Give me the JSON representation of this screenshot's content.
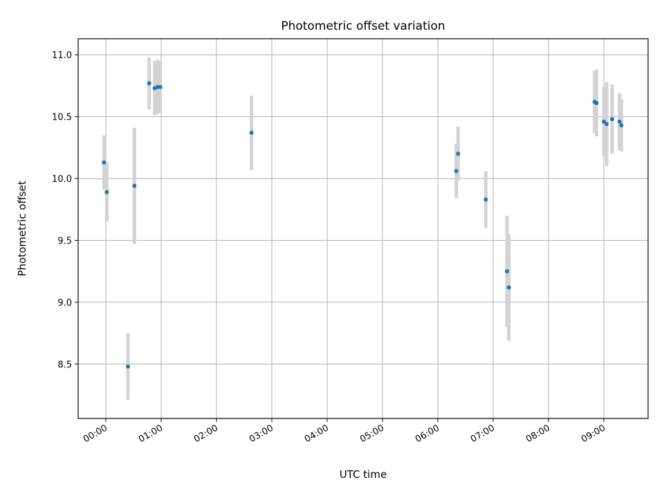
{
  "chart_data": {
    "type": "scatter",
    "title": "Photometric offset variation",
    "xlabel": "UTC time",
    "ylabel": "Photometric offset",
    "x_is_time": true,
    "xlim": [
      "23:30",
      "09:48"
    ],
    "ylim": [
      8.06,
      11.13
    ],
    "yticks": [
      8.5,
      9.0,
      9.5,
      10.0,
      10.5,
      11.0
    ],
    "ytick_labels": [
      "8.5",
      "9.0",
      "9.5",
      "10.0",
      "10.5",
      "11.0"
    ],
    "xticks": [
      "00:00",
      "01:00",
      "02:00",
      "03:00",
      "04:00",
      "05:00",
      "06:00",
      "07:00",
      "08:00",
      "09:00"
    ],
    "grid": true,
    "colors": {
      "point": "#1f77b4",
      "errorbar": "#d3d3d3",
      "grid": "#b0b0b0"
    },
    "points": [
      {
        "time": "23:58",
        "y": 10.13,
        "err": 0.22
      },
      {
        "time": "00:01",
        "y": 9.89,
        "err": 0.24
      },
      {
        "time": "00:24",
        "y": 8.48,
        "err": 0.27
      },
      {
        "time": "00:31",
        "y": 9.94,
        "err": 0.47
      },
      {
        "time": "00:47",
        "y": 10.77,
        "err": 0.21
      },
      {
        "time": "00:53",
        "y": 10.73,
        "err": 0.22
      },
      {
        "time": "00:56",
        "y": 10.74,
        "err": 0.22
      },
      {
        "time": "00:59",
        "y": 10.74,
        "err": 0.21
      },
      {
        "time": "02:38",
        "y": 10.37,
        "err": 0.3
      },
      {
        "time": "06:20",
        "y": 10.06,
        "err": 0.22
      },
      {
        "time": "06:22",
        "y": 10.2,
        "err": 0.22
      },
      {
        "time": "06:52",
        "y": 9.83,
        "err": 0.23
      },
      {
        "time": "07:15",
        "y": 9.25,
        "err": 0.45
      },
      {
        "time": "07:17",
        "y": 9.12,
        "err": 0.43
      },
      {
        "time": "08:50",
        "y": 10.62,
        "err": 0.25
      },
      {
        "time": "08:52",
        "y": 10.61,
        "err": 0.27
      },
      {
        "time": "09:00",
        "y": 10.46,
        "err": 0.28
      },
      {
        "time": "09:03",
        "y": 10.44,
        "err": 0.34
      },
      {
        "time": "09:09",
        "y": 10.48,
        "err": 0.28
      },
      {
        "time": "09:17",
        "y": 10.46,
        "err": 0.23
      },
      {
        "time": "09:19",
        "y": 10.43,
        "err": 0.21
      }
    ]
  }
}
